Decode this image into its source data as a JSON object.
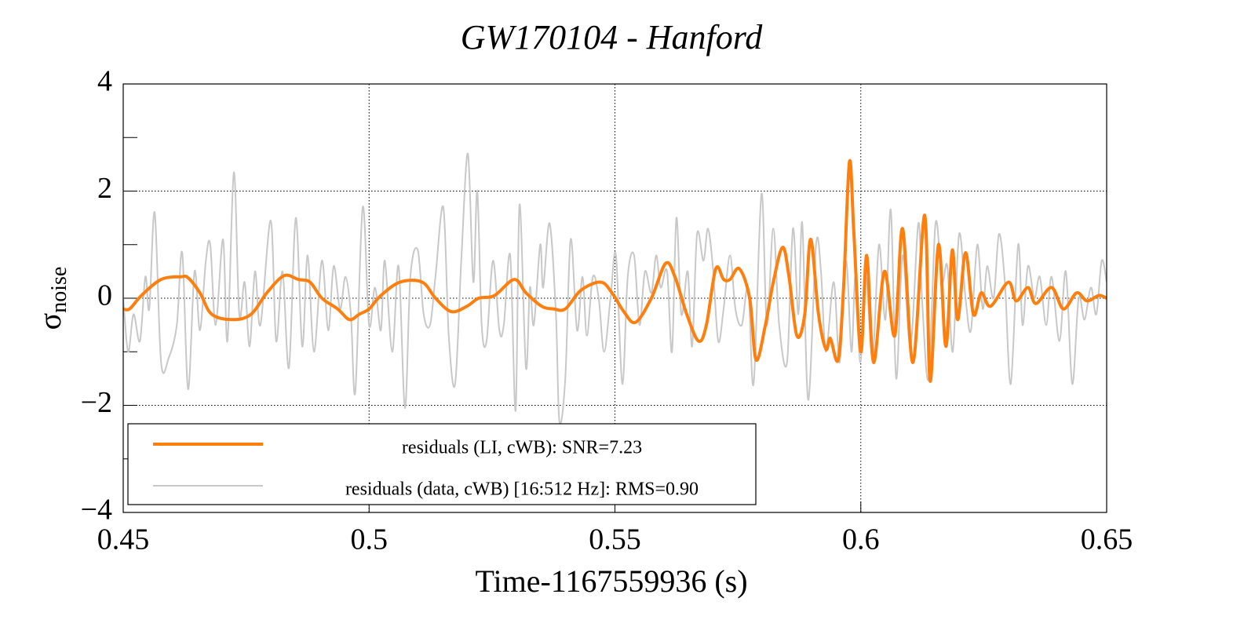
{
  "chart_data": {
    "type": "line",
    "title": "GW170104 - Hanford",
    "xlabel": "Time-1167559936 (s)",
    "ylabel": {
      "symbol": "σ",
      "subscript": "noise"
    },
    "xlim": [
      0.45,
      0.65
    ],
    "ylim": [
      -4,
      4
    ],
    "xticks": [
      0.45,
      0.5,
      0.55,
      0.6,
      0.65
    ],
    "yticks": [
      {
        "value": -4,
        "label": "−4"
      },
      {
        "value": -2,
        "label": "−2"
      },
      0,
      2,
      4
    ],
    "yminor_ticks": [
      -3,
      -1,
      1,
      3
    ],
    "grid": true,
    "legend": "lower left",
    "series": [
      {
        "name": "residuals (LI, cWB): SNR=7.23",
        "color": "#ff7f0e",
        "x": [
          0.45,
          0.4513,
          0.4537,
          0.4577,
          0.4617,
          0.4632,
          0.4656,
          0.468,
          0.4723,
          0.476,
          0.4792,
          0.4827,
          0.4856,
          0.488,
          0.4904,
          0.4936,
          0.496,
          0.498,
          0.5,
          0.5024,
          0.5063,
          0.5108,
          0.5135,
          0.5167,
          0.5199,
          0.5223,
          0.5255,
          0.5295,
          0.5319,
          0.5351,
          0.5375,
          0.5399,
          0.5431,
          0.5471,
          0.5494,
          0.5518,
          0.5542,
          0.5574,
          0.5603,
          0.5622,
          0.5646,
          0.567,
          0.5686,
          0.5705,
          0.5721,
          0.5734,
          0.5753,
          0.5774,
          0.5787,
          0.5806,
          0.5822,
          0.5841,
          0.5854,
          0.587,
          0.5886,
          0.5898,
          0.5914,
          0.5929,
          0.5938,
          0.5954,
          0.5965,
          0.5977,
          0.5986,
          0.6,
          0.6012,
          0.6026,
          0.6048,
          0.6069,
          0.6085,
          0.6106,
          0.613,
          0.6141,
          0.6158,
          0.6173,
          0.6186,
          0.6197,
          0.6213,
          0.6229,
          0.6245,
          0.6264,
          0.63,
          0.6316,
          0.634,
          0.6356,
          0.6388,
          0.6412,
          0.6439,
          0.646,
          0.6484,
          0.65
        ],
        "values": [
          -0.2,
          -0.2,
          0.05,
          0.35,
          0.4,
          0.38,
          0.1,
          -0.3,
          -0.4,
          -0.3,
          0.1,
          0.42,
          0.35,
          0.3,
          0.0,
          -0.2,
          -0.4,
          -0.3,
          -0.2,
          0.05,
          0.3,
          0.3,
          0.0,
          -0.25,
          -0.15,
          0.0,
          0.05,
          0.35,
          0.1,
          -0.15,
          -0.2,
          -0.2,
          0.15,
          0.3,
          0.1,
          -0.25,
          -0.45,
          0.0,
          0.65,
          0.4,
          -0.3,
          -0.8,
          -0.5,
          0.55,
          0.35,
          0.35,
          0.55,
          0.0,
          -1.15,
          -0.5,
          0.3,
          0.95,
          0.4,
          -0.7,
          -0.3,
          1.1,
          -0.3,
          -0.95,
          -0.75,
          -1.15,
          0.2,
          2.55,
          1.2,
          -1.0,
          0.8,
          -1.2,
          0.5,
          -0.7,
          1.3,
          -1.2,
          1.55,
          -1.55,
          1.0,
          -0.9,
          0.9,
          -0.4,
          0.85,
          -0.3,
          0.1,
          -0.15,
          0.3,
          -0.05,
          0.2,
          -0.1,
          0.2,
          -0.2,
          0.1,
          -0.05,
          0.05,
          0.0
        ]
      },
      {
        "name": "residuals (data, cWB) [16:512 Hz]: RMS=0.90",
        "color": "#c8c8c8",
        "x": [
          0.45,
          0.451,
          0.4521,
          0.4534,
          0.4545,
          0.4553,
          0.4564,
          0.4577,
          0.4593,
          0.4609,
          0.462,
          0.4632,
          0.4645,
          0.4656,
          0.4668,
          0.4677,
          0.4688,
          0.4703,
          0.4712,
          0.4725,
          0.4736,
          0.4747,
          0.4757,
          0.4768,
          0.4779,
          0.48,
          0.4811,
          0.4824,
          0.4837,
          0.4851,
          0.4864,
          0.4875,
          0.4888,
          0.4904,
          0.4917,
          0.4928,
          0.4941,
          0.4952,
          0.4963,
          0.4972,
          0.4987,
          0.5,
          0.5012,
          0.5024,
          0.5032,
          0.5047,
          0.506,
          0.5073,
          0.5084,
          0.5099,
          0.5111,
          0.5124,
          0.5135,
          0.5151,
          0.5162,
          0.5175,
          0.5188,
          0.5201,
          0.5212,
          0.522,
          0.5229,
          0.5239,
          0.5252,
          0.5265,
          0.5274,
          0.5287,
          0.5298,
          0.5306,
          0.5319,
          0.5327,
          0.5335,
          0.5348,
          0.5354,
          0.5367,
          0.538,
          0.5387,
          0.5399,
          0.541,
          0.5423,
          0.5434,
          0.5443,
          0.5455,
          0.5467,
          0.5478,
          0.5491,
          0.5502,
          0.5515,
          0.5526,
          0.5539,
          0.555,
          0.5561,
          0.5574,
          0.5584,
          0.5593,
          0.5606,
          0.5616,
          0.5625,
          0.5635,
          0.5648,
          0.5657,
          0.5667,
          0.568,
          0.5689,
          0.5699,
          0.571,
          0.5721,
          0.5734,
          0.5745,
          0.5758,
          0.5771,
          0.5782,
          0.5798,
          0.5809,
          0.5822,
          0.5834,
          0.585,
          0.5862,
          0.5873,
          0.5881,
          0.5893,
          0.5909,
          0.5919,
          0.5929,
          0.5945,
          0.5957,
          0.597,
          0.5981,
          0.5989,
          0.5999,
          0.601,
          0.6024,
          0.6037,
          0.605,
          0.6061,
          0.6072,
          0.6085,
          0.6101,
          0.6117,
          0.6125,
          0.6138,
          0.6152,
          0.6165,
          0.6176,
          0.6187,
          0.62,
          0.6213,
          0.6224,
          0.6237,
          0.6248,
          0.6257,
          0.627,
          0.6281,
          0.6293,
          0.6305,
          0.632,
          0.6329,
          0.634,
          0.6353,
          0.6364,
          0.6377,
          0.6388,
          0.6404,
          0.6417,
          0.643,
          0.6443,
          0.6455,
          0.6468,
          0.6479,
          0.649,
          0.65
        ],
        "values": [
          0.0,
          -1.0,
          -0.3,
          -0.8,
          0.4,
          -0.2,
          1.6,
          -1.2,
          -1.1,
          -0.5,
          0.85,
          -1.7,
          0.5,
          -0.6,
          0.7,
          1.0,
          -0.5,
          1.1,
          -0.8,
          2.35,
          -0.3,
          0.3,
          -0.9,
          0.5,
          -0.5,
          1.45,
          -0.8,
          0.5,
          -1.3,
          1.5,
          -0.9,
          0.8,
          -1.0,
          0.7,
          -0.6,
          0.6,
          -0.2,
          0.4,
          -0.3,
          -1.75,
          1.7,
          -0.5,
          0.2,
          -0.6,
          0.7,
          -1.0,
          0.6,
          -2.05,
          0.4,
          0.9,
          -0.3,
          -0.5,
          0.4,
          1.7,
          -0.7,
          -1.6,
          0.8,
          2.7,
          0.3,
          2.0,
          -0.5,
          -0.8,
          0.7,
          -0.6,
          -0.5,
          0.8,
          -2.1,
          1.75,
          -1.3,
          0.2,
          -0.5,
          1.0,
          0.2,
          1.4,
          -0.3,
          -2.3,
          -1.5,
          1.1,
          -0.6,
          0.4,
          -0.7,
          0.4,
          0.0,
          -1.0,
          0.0,
          0.8,
          -1.6,
          0.4,
          0.8,
          -0.5,
          0.5,
          0.1,
          0.8,
          0.2,
          0.5,
          -1.0,
          1.5,
          -0.3,
          0.5,
          -0.9,
          1.2,
          0.7,
          1.3,
          0.6,
          -0.8,
          -0.2,
          0.8,
          -0.2,
          -0.5,
          0.2,
          -1.6,
          1.95,
          -0.5,
          1.3,
          -0.5,
          -1.2,
          1.3,
          -0.3,
          1.4,
          -1.9,
          1.0,
          0.5,
          -1.0,
          0.3,
          -1.2,
          0.7,
          -1.0,
          0.4,
          -1.2,
          0.4,
          -1.1,
          1.0,
          -0.4,
          1.65,
          -1.5,
          0.8,
          -0.9,
          1.4,
          -0.1,
          -1.5,
          1.4,
          0.3,
          0.6,
          -1.0,
          1.2,
          0.0,
          -0.6,
          1.0,
          -0.2,
          0.6,
          0.0,
          1.2,
          0.3,
          -1.6,
          1.0,
          -0.5,
          0.6,
          0.0,
          0.4,
          -0.5,
          0.4,
          -0.8,
          0.5,
          -1.6,
          0.0,
          -0.4,
          0.2,
          -0.3,
          0.7,
          0.3
        ]
      }
    ]
  }
}
